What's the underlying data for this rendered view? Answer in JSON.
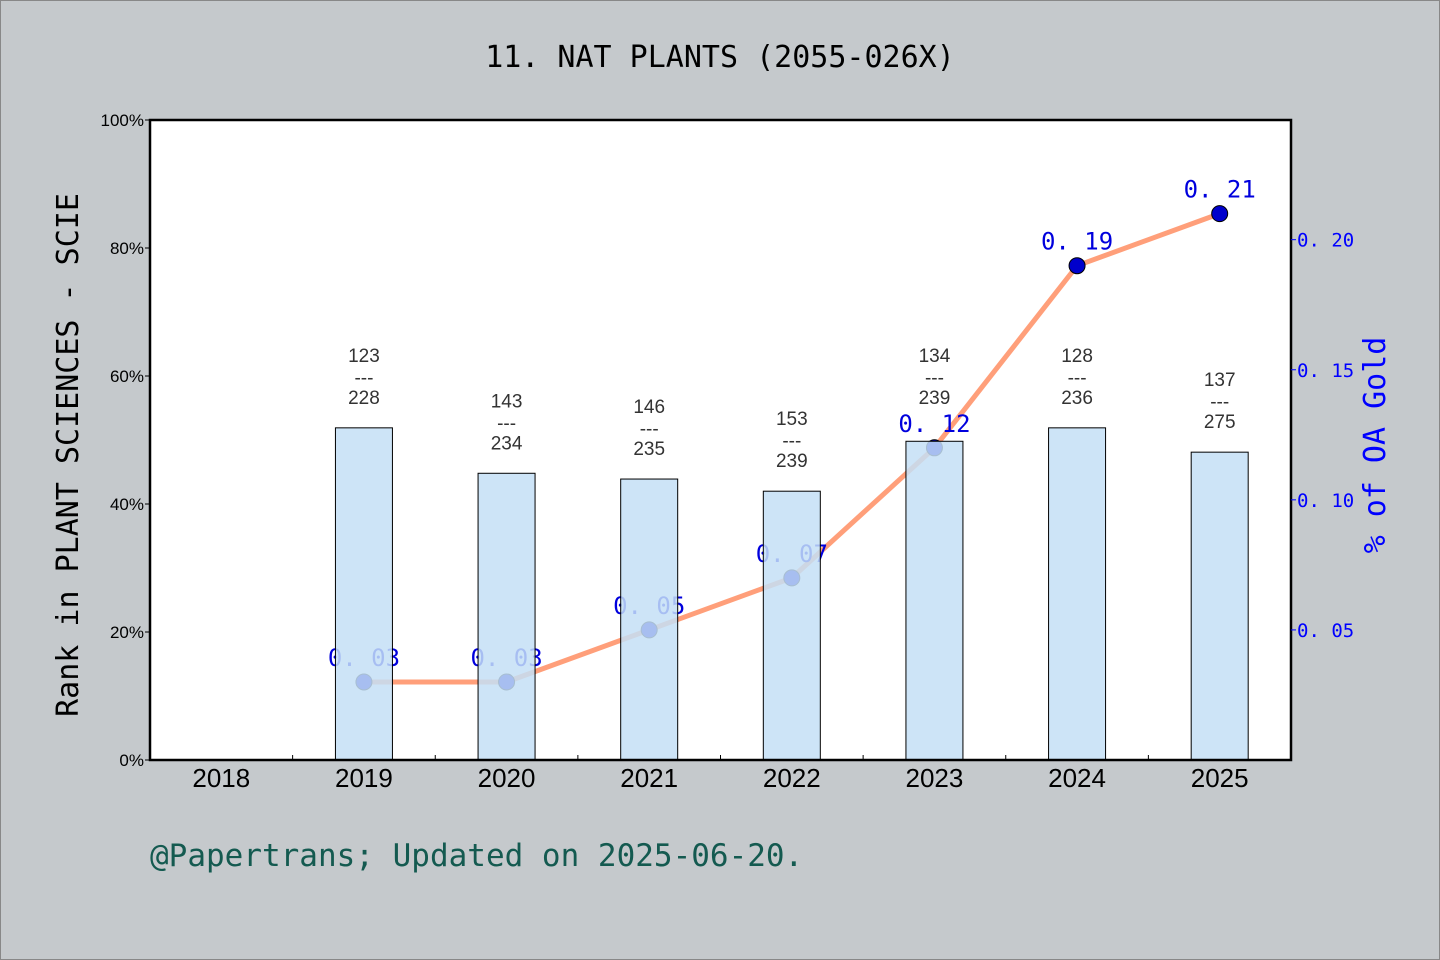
{
  "chart_data": {
    "type": "bar+line",
    "title": "11. NAT PLANTS (2055-026X)",
    "ylabel": "Rank in PLANT SCIENCES - SCIE",
    "ylabel_right": "% of OA Gold",
    "categories": [
      "2018",
      "2019",
      "2020",
      "2021",
      "2022",
      "2023",
      "2024",
      "2025"
    ],
    "ylim": [
      0,
      100
    ],
    "yticks": [
      "0%",
      "20%",
      "40%",
      "60%",
      "80%",
      "100%"
    ],
    "ylim_right": [
      0,
      0.246
    ],
    "yticks_right": [
      "0. 05",
      "0. 10",
      "0. 15",
      "0. 20"
    ],
    "bars": {
      "values": [
        null,
        51.9,
        44.8,
        43.9,
        42.0,
        49.8,
        51.9,
        48.1
      ],
      "rank_labels": [
        null,
        {
          "rank": "123",
          "total": "228"
        },
        {
          "rank": "143",
          "total": "234"
        },
        {
          "rank": "146",
          "total": "235"
        },
        {
          "rank": "153",
          "total": "239"
        },
        {
          "rank": "134",
          "total": "239"
        },
        {
          "rank": "128",
          "total": "236"
        },
        {
          "rank": "137",
          "total": "275"
        }
      ],
      "separator": "---",
      "color": "#c4dff6"
    },
    "line": {
      "values": [
        null,
        0.03,
        0.03,
        0.05,
        0.07,
        0.12,
        0.19,
        0.21
      ],
      "labels": [
        null,
        "0. 03",
        "0. 03",
        "0. 05",
        "0. 07",
        "0. 12",
        "0. 19",
        "0. 21"
      ],
      "color": "#ff9f7a",
      "marker_color": "#0000cc"
    },
    "grid": false
  },
  "footer": "@Papertrans; Updated on 2025-06-20."
}
